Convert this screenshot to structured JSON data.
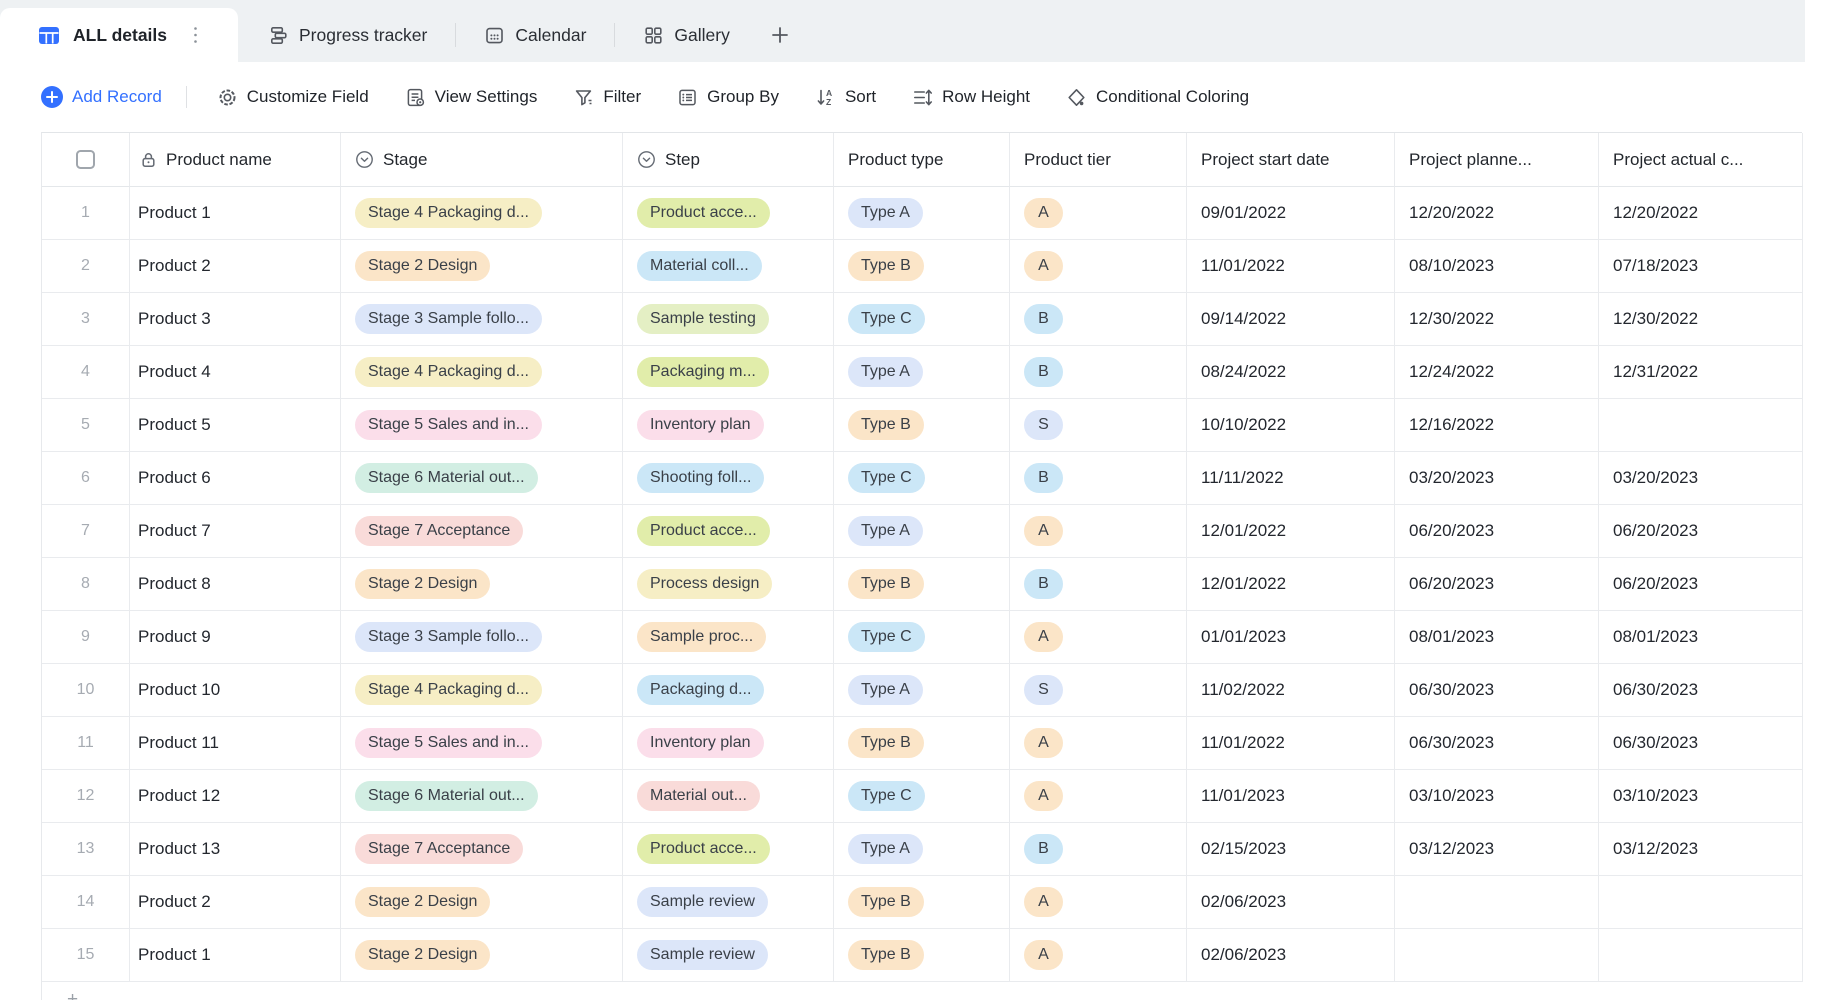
{
  "colors": {
    "accent": "#3370ff",
    "tab_bar_background": "#eef1f3",
    "grid_line": "#e9ebee"
  },
  "pill_colors": {
    "cream": "#f6eec5",
    "peach": "#fbe5c8",
    "periwinkle": "#dce6f9",
    "pink": "#fbdeea",
    "mint": "#d2eee3",
    "sky": "#cbe7f7",
    "softred": "#f9dbd9",
    "lime": "#e1edaa",
    "sage": "#e4efc4"
  },
  "tab_bar": {
    "active_tab": {
      "label": "ALL details",
      "icon": "table-grid-icon"
    },
    "tabs": [
      {
        "label": "Progress tracker",
        "icon": "kanban-icon"
      },
      {
        "label": "Calendar",
        "icon": "calendar-icon"
      },
      {
        "label": "Gallery",
        "icon": "gallery-icon"
      }
    ],
    "add_tab_label": "+"
  },
  "toolbar": {
    "items": [
      {
        "label": "Add Record",
        "icon": "plus-circle-icon"
      },
      {
        "label": "Customize Field",
        "icon": "gear-icon"
      },
      {
        "label": "View Settings",
        "icon": "view-settings-icon"
      },
      {
        "label": "Filter",
        "icon": "filter-icon"
      },
      {
        "label": "Group By",
        "icon": "group-by-icon"
      },
      {
        "label": "Sort",
        "icon": "sort-az-icon"
      },
      {
        "label": "Row Height",
        "icon": "row-height-icon"
      },
      {
        "label": "Conditional Coloring",
        "icon": "conditional-coloring-icon"
      }
    ]
  },
  "table": {
    "columns": [
      {
        "key": "num",
        "label": "",
        "icon": "checkbox"
      },
      {
        "key": "name",
        "label": "Product name",
        "icon": "lock-icon"
      },
      {
        "key": "stage",
        "label": "Stage",
        "icon": "single-select-icon"
      },
      {
        "key": "step",
        "label": "Step",
        "icon": "single-select-icon"
      },
      {
        "key": "type",
        "label": "Product type"
      },
      {
        "key": "tier",
        "label": "Product tier"
      },
      {
        "key": "start",
        "label": "Project start date"
      },
      {
        "key": "planned",
        "label": "Project planne..."
      },
      {
        "key": "actual",
        "label": "Project actual c..."
      }
    ],
    "rows": [
      {
        "num": "1",
        "name": "Product 1",
        "stage": {
          "label": "Stage 4 Packaging d...",
          "color": "cream"
        },
        "step": {
          "label": "Product acce...",
          "color": "lime"
        },
        "type": {
          "label": "Type A",
          "color": "periwinkle"
        },
        "tier": {
          "label": "A",
          "color": "peach"
        },
        "start": "09/01/2022",
        "planned": "12/20/2022",
        "actual": "12/20/2022"
      },
      {
        "num": "2",
        "name": "Product 2",
        "stage": {
          "label": "Stage 2 Design",
          "color": "peach"
        },
        "step": {
          "label": "Material coll...",
          "color": "sky"
        },
        "type": {
          "label": "Type B",
          "color": "peach"
        },
        "tier": {
          "label": "A",
          "color": "peach"
        },
        "start": "11/01/2022",
        "planned": "08/10/2023",
        "actual": "07/18/2023"
      },
      {
        "num": "3",
        "name": "Product 3",
        "stage": {
          "label": "Stage 3 Sample follo...",
          "color": "periwinkle"
        },
        "step": {
          "label": "Sample testing",
          "color": "sage"
        },
        "type": {
          "label": "Type C",
          "color": "sky"
        },
        "tier": {
          "label": "B",
          "color": "sky"
        },
        "start": "09/14/2022",
        "planned": "12/30/2022",
        "actual": "12/30/2022"
      },
      {
        "num": "4",
        "name": "Product 4",
        "stage": {
          "label": "Stage 4 Packaging d...",
          "color": "cream"
        },
        "step": {
          "label": "Packaging m...",
          "color": "lime"
        },
        "type": {
          "label": "Type A",
          "color": "periwinkle"
        },
        "tier": {
          "label": "B",
          "color": "sky"
        },
        "start": "08/24/2022",
        "planned": "12/24/2022",
        "actual": "12/31/2022"
      },
      {
        "num": "5",
        "name": "Product 5",
        "stage": {
          "label": "Stage 5 Sales and in...",
          "color": "pink"
        },
        "step": {
          "label": "Inventory plan",
          "color": "pink"
        },
        "type": {
          "label": "Type B",
          "color": "peach"
        },
        "tier": {
          "label": "S",
          "color": "periwinkle"
        },
        "start": "10/10/2022",
        "planned": "12/16/2022",
        "actual": ""
      },
      {
        "num": "6",
        "name": "Product 6",
        "stage": {
          "label": "Stage 6 Material out...",
          "color": "mint"
        },
        "step": {
          "label": "Shooting foll...",
          "color": "sky"
        },
        "type": {
          "label": "Type C",
          "color": "sky"
        },
        "tier": {
          "label": "B",
          "color": "sky"
        },
        "start": "11/11/2022",
        "planned": "03/20/2023",
        "actual": "03/20/2023"
      },
      {
        "num": "7",
        "name": "Product 7",
        "stage": {
          "label": "Stage 7 Acceptance",
          "color": "softred"
        },
        "step": {
          "label": "Product acce...",
          "color": "lime"
        },
        "type": {
          "label": "Type A",
          "color": "periwinkle"
        },
        "tier": {
          "label": "A",
          "color": "peach"
        },
        "start": "12/01/2022",
        "planned": "06/20/2023",
        "actual": "06/20/2023"
      },
      {
        "num": "8",
        "name": "Product 8",
        "stage": {
          "label": "Stage 2 Design",
          "color": "peach"
        },
        "step": {
          "label": "Process design",
          "color": "cream"
        },
        "type": {
          "label": "Type B",
          "color": "peach"
        },
        "tier": {
          "label": "B",
          "color": "sky"
        },
        "start": "12/01/2022",
        "planned": "06/20/2023",
        "actual": "06/20/2023"
      },
      {
        "num": "9",
        "name": "Product 9",
        "stage": {
          "label": "Stage 3 Sample follo...",
          "color": "periwinkle"
        },
        "step": {
          "label": "Sample proc...",
          "color": "peach"
        },
        "type": {
          "label": "Type C",
          "color": "sky"
        },
        "tier": {
          "label": "A",
          "color": "peach"
        },
        "start": "01/01/2023",
        "planned": "08/01/2023",
        "actual": "08/01/2023"
      },
      {
        "num": "10",
        "name": "Product 10",
        "stage": {
          "label": "Stage 4 Packaging d...",
          "color": "cream"
        },
        "step": {
          "label": "Packaging d...",
          "color": "sky"
        },
        "type": {
          "label": "Type A",
          "color": "periwinkle"
        },
        "tier": {
          "label": "S",
          "color": "periwinkle"
        },
        "start": "11/02/2022",
        "planned": "06/30/2023",
        "actual": "06/30/2023"
      },
      {
        "num": "11",
        "name": "Product 11",
        "stage": {
          "label": "Stage 5 Sales and in...",
          "color": "pink"
        },
        "step": {
          "label": "Inventory plan",
          "color": "pink"
        },
        "type": {
          "label": "Type B",
          "color": "peach"
        },
        "tier": {
          "label": "A",
          "color": "peach"
        },
        "start": "11/01/2022",
        "planned": "06/30/2023",
        "actual": "06/30/2023"
      },
      {
        "num": "12",
        "name": "Product 12",
        "stage": {
          "label": "Stage 6 Material out...",
          "color": "mint"
        },
        "step": {
          "label": "Material out...",
          "color": "softred"
        },
        "type": {
          "label": "Type C",
          "color": "sky"
        },
        "tier": {
          "label": "A",
          "color": "peach"
        },
        "start": "11/01/2023",
        "planned": "03/10/2023",
        "actual": "03/10/2023"
      },
      {
        "num": "13",
        "name": "Product 13",
        "stage": {
          "label": "Stage 7 Acceptance",
          "color": "softred"
        },
        "step": {
          "label": "Product acce...",
          "color": "lime"
        },
        "type": {
          "label": "Type A",
          "color": "periwinkle"
        },
        "tier": {
          "label": "B",
          "color": "sky"
        },
        "start": "02/15/2023",
        "planned": "03/12/2023",
        "actual": "03/12/2023"
      },
      {
        "num": "14",
        "name": "Product 2",
        "stage": {
          "label": "Stage 2 Design",
          "color": "peach"
        },
        "step": {
          "label": "Sample review",
          "color": "periwinkle"
        },
        "type": {
          "label": "Type B",
          "color": "peach"
        },
        "tier": {
          "label": "A",
          "color": "peach"
        },
        "start": "02/06/2023",
        "planned": "",
        "actual": ""
      },
      {
        "num": "15",
        "name": "Product 1",
        "stage": {
          "label": "Stage 2 Design",
          "color": "peach"
        },
        "step": {
          "label": "Sample review",
          "color": "periwinkle"
        },
        "type": {
          "label": "Type B",
          "color": "peach"
        },
        "tier": {
          "label": "A",
          "color": "peach"
        },
        "start": "02/06/2023",
        "planned": "",
        "actual": ""
      }
    ],
    "add_row_label": "+"
  }
}
